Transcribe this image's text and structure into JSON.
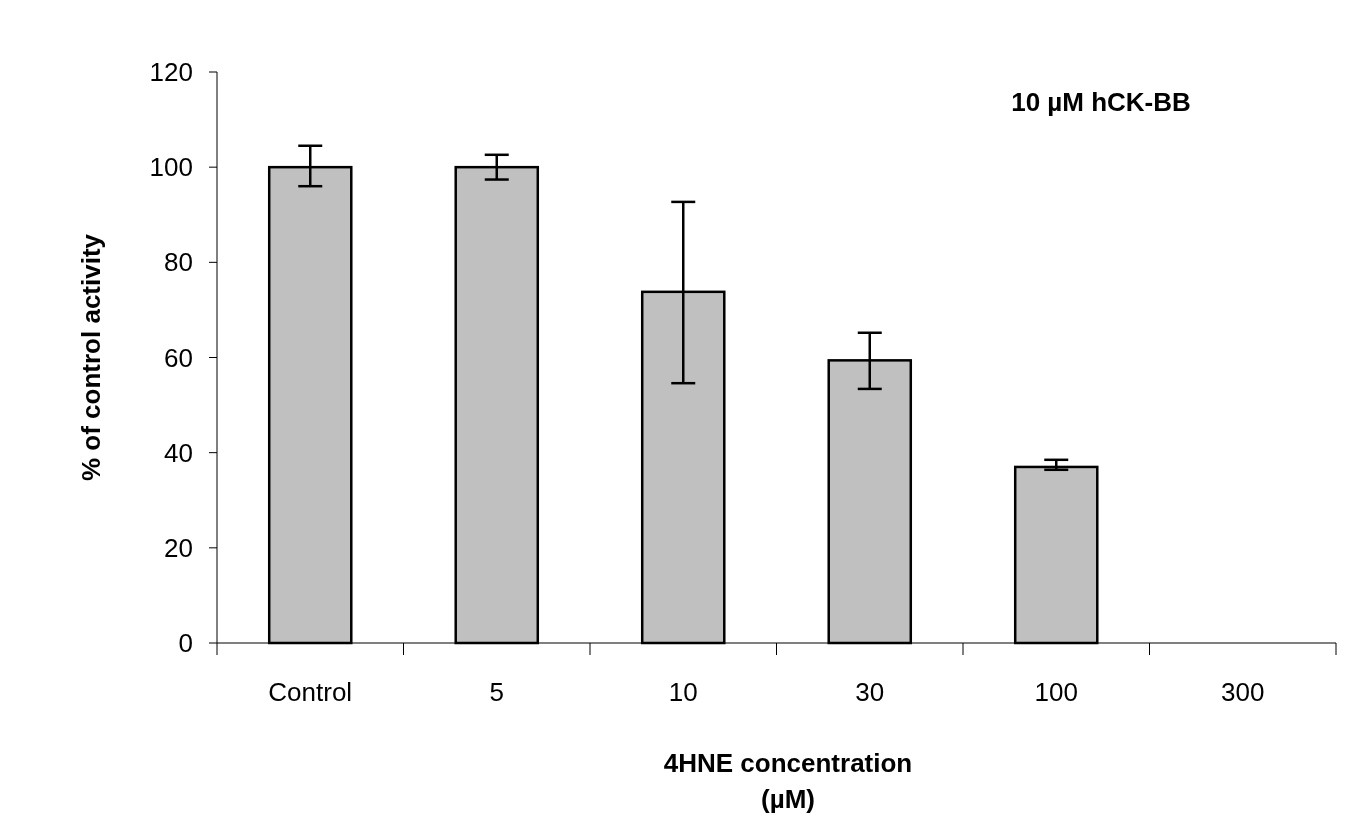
{
  "chart_data": {
    "type": "bar",
    "title": "10 µM hCK-BB",
    "xlabel": "4HNE concentration\n(µM)",
    "ylabel": "% of control activity",
    "categories": [
      "Control",
      "5",
      "10",
      "30",
      "100",
      "300"
    ],
    "values": [
      100,
      100,
      73.8,
      59.4,
      37.0,
      null
    ],
    "errors": [
      [
        96,
        104.5
      ],
      [
        97.4,
        102.6
      ],
      [
        54.6,
        92.7
      ],
      [
        53.4,
        65.2
      ],
      [
        36.4,
        38.5
      ],
      null
    ],
    "color": "#c0c0c0",
    "ylim": [
      0,
      120
    ],
    "yticks": [
      0,
      20,
      40,
      60,
      80,
      100,
      120
    ],
    "grid": false
  }
}
